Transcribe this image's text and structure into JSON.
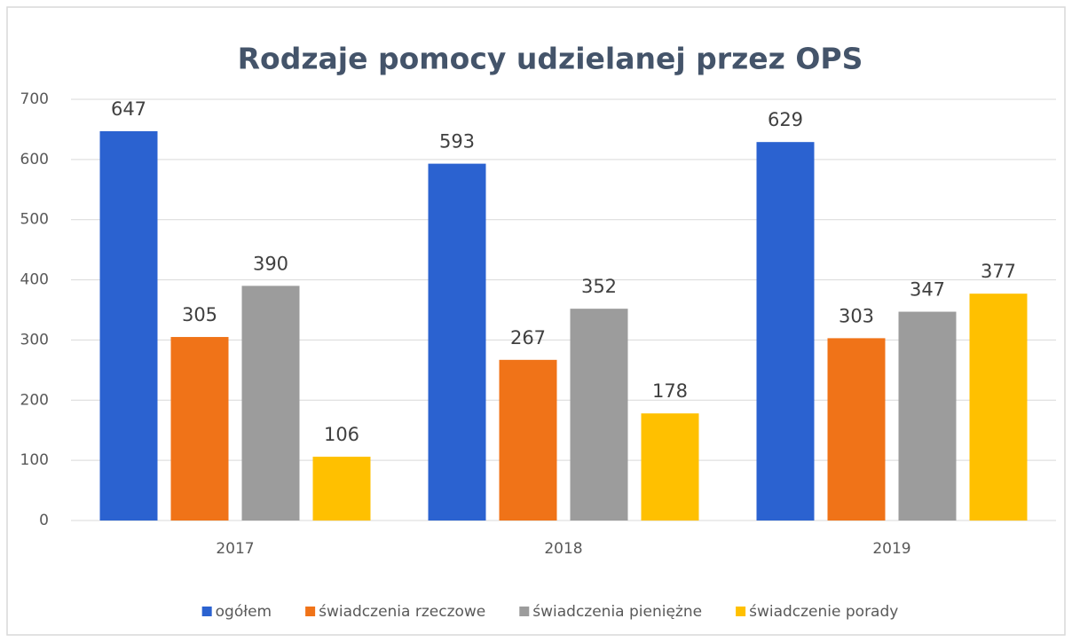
{
  "chart_data": {
    "type": "bar",
    "title": "Rodzaje pomocy udzielanej przez OPS",
    "categories": [
      "2017",
      "2018",
      "2019"
    ],
    "series": [
      {
        "name": "ogółem",
        "color": "#2b62d0",
        "values": [
          647,
          593,
          629
        ]
      },
      {
        "name": "świadczenia rzeczowe",
        "color": "#f07318",
        "values": [
          305,
          267,
          303
        ]
      },
      {
        "name": "świadczenia pieniężne",
        "color": "#9c9c9c",
        "values": [
          390,
          352,
          347
        ]
      },
      {
        "name": "świadczenie porady",
        "color": "#ffc000",
        "values": [
          106,
          178,
          377
        ]
      }
    ],
    "ylim": [
      0,
      700
    ],
    "yticks": [
      0,
      100,
      200,
      300,
      400,
      500,
      600,
      700
    ],
    "grid": true,
    "legend": "bottom"
  }
}
